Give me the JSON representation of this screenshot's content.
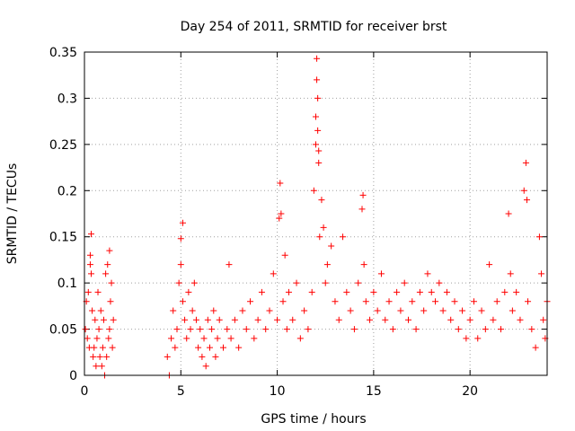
{
  "chart_data": {
    "type": "scatter",
    "title": "Day 254 of 2011, SRMTID for receiver brst",
    "xlabel": "GPS time / hours",
    "ylabel": "SRMTID / TECUs",
    "xlim": [
      0,
      24
    ],
    "ylim": [
      0,
      0.35
    ],
    "x_ticks": [
      "0",
      "5",
      "10",
      "15",
      "20"
    ],
    "y_ticks": [
      "0",
      "0.05",
      "0.1",
      "0.15",
      "0.2",
      "0.25",
      "0.3",
      "0.35"
    ],
    "x_tick_values": [
      0,
      5,
      10,
      15,
      20
    ],
    "y_tick_values": [
      0,
      0.05,
      0.1,
      0.15,
      0.2,
      0.25,
      0.3,
      0.35
    ],
    "grid": true,
    "marker": "+",
    "marker_color": "#ff0000",
    "series": [
      {
        "points": [
          [
            0.05,
            0.05
          ],
          [
            0.1,
            0.08
          ],
          [
            0.15,
            0.04
          ],
          [
            0.2,
            0.09
          ],
          [
            0.25,
            0.03
          ],
          [
            0.3,
            0.13
          ],
          [
            0.3,
            0.12
          ],
          [
            0.35,
            0.11
          ],
          [
            0.35,
            0.153
          ],
          [
            0.4,
            0.07
          ],
          [
            0.45,
            0.02
          ],
          [
            0.5,
            0.03
          ],
          [
            0.55,
            0.06
          ],
          [
            0.6,
            0.01
          ],
          [
            0.65,
            0.04
          ],
          [
            0.7,
            0.09
          ],
          [
            0.75,
            0.05
          ],
          [
            0.8,
            0.02
          ],
          [
            0.85,
            0.07
          ],
          [
            0.9,
            0.01
          ],
          [
            0.95,
            0.03
          ],
          [
            1.0,
            0.06
          ],
          [
            1.05,
            0.0
          ],
          [
            1.1,
            0.11
          ],
          [
            1.15,
            0.02
          ],
          [
            1.2,
            0.12
          ],
          [
            1.25,
            0.04
          ],
          [
            1.3,
            0.05
          ],
          [
            1.3,
            0.135
          ],
          [
            1.35,
            0.08
          ],
          [
            1.4,
            0.1
          ],
          [
            1.45,
            0.03
          ],
          [
            1.5,
            0.06
          ],
          [
            4.3,
            0.02
          ],
          [
            4.4,
            0.0
          ],
          [
            4.5,
            0.04
          ],
          [
            4.6,
            0.07
          ],
          [
            4.7,
            0.03
          ],
          [
            4.8,
            0.05
          ],
          [
            4.9,
            0.1
          ],
          [
            5.0,
            0.12
          ],
          [
            5.0,
            0.148
          ],
          [
            5.1,
            0.08
          ],
          [
            5.1,
            0.165
          ],
          [
            5.2,
            0.06
          ],
          [
            5.3,
            0.04
          ],
          [
            5.4,
            0.09
          ],
          [
            5.5,
            0.05
          ],
          [
            5.6,
            0.07
          ],
          [
            5.7,
            0.1
          ],
          [
            5.8,
            0.06
          ],
          [
            5.9,
            0.03
          ],
          [
            6.0,
            0.05
          ],
          [
            6.1,
            0.02
          ],
          [
            6.2,
            0.04
          ],
          [
            6.3,
            0.01
          ],
          [
            6.4,
            0.06
          ],
          [
            6.5,
            0.03
          ],
          [
            6.6,
            0.05
          ],
          [
            6.7,
            0.07
          ],
          [
            6.8,
            0.02
          ],
          [
            6.9,
            0.04
          ],
          [
            7.0,
            0.06
          ],
          [
            7.2,
            0.03
          ],
          [
            7.4,
            0.05
          ],
          [
            7.5,
            0.12
          ],
          [
            7.6,
            0.04
          ],
          [
            7.8,
            0.06
          ],
          [
            8.0,
            0.03
          ],
          [
            8.2,
            0.07
          ],
          [
            8.4,
            0.05
          ],
          [
            8.6,
            0.08
          ],
          [
            8.8,
            0.04
          ],
          [
            9.0,
            0.06
          ],
          [
            9.2,
            0.09
          ],
          [
            9.4,
            0.05
          ],
          [
            9.6,
            0.07
          ],
          [
            9.8,
            0.11
          ],
          [
            10.0,
            0.06
          ],
          [
            10.1,
            0.17
          ],
          [
            10.15,
            0.208
          ],
          [
            10.2,
            0.175
          ],
          [
            10.3,
            0.08
          ],
          [
            10.4,
            0.13
          ],
          [
            10.5,
            0.05
          ],
          [
            10.6,
            0.09
          ],
          [
            10.8,
            0.06
          ],
          [
            11.0,
            0.1
          ],
          [
            11.2,
            0.04
          ],
          [
            11.4,
            0.07
          ],
          [
            11.6,
            0.05
          ],
          [
            11.8,
            0.09
          ],
          [
            11.9,
            0.2
          ],
          [
            12.0,
            0.28
          ],
          [
            12.0,
            0.25
          ],
          [
            12.05,
            0.343
          ],
          [
            12.05,
            0.32
          ],
          [
            12.1,
            0.3
          ],
          [
            12.1,
            0.265
          ],
          [
            12.15,
            0.23
          ],
          [
            12.15,
            0.243
          ],
          [
            12.2,
            0.15
          ],
          [
            12.3,
            0.19
          ],
          [
            12.4,
            0.16
          ],
          [
            12.5,
            0.1
          ],
          [
            12.6,
            0.12
          ],
          [
            12.8,
            0.14
          ],
          [
            13.0,
            0.08
          ],
          [
            13.2,
            0.06
          ],
          [
            13.4,
            0.15
          ],
          [
            13.6,
            0.09
          ],
          [
            13.8,
            0.07
          ],
          [
            14.0,
            0.05
          ],
          [
            14.2,
            0.1
          ],
          [
            14.4,
            0.18
          ],
          [
            14.45,
            0.195
          ],
          [
            14.5,
            0.12
          ],
          [
            14.6,
            0.08
          ],
          [
            14.8,
            0.06
          ],
          [
            15.0,
            0.09
          ],
          [
            15.2,
            0.07
          ],
          [
            15.4,
            0.11
          ],
          [
            15.6,
            0.06
          ],
          [
            15.8,
            0.08
          ],
          [
            16.0,
            0.05
          ],
          [
            16.2,
            0.09
          ],
          [
            16.4,
            0.07
          ],
          [
            16.6,
            0.1
          ],
          [
            16.8,
            0.06
          ],
          [
            17.0,
            0.08
          ],
          [
            17.2,
            0.05
          ],
          [
            17.4,
            0.09
          ],
          [
            17.6,
            0.07
          ],
          [
            17.8,
            0.11
          ],
          [
            18.0,
            0.09
          ],
          [
            18.2,
            0.08
          ],
          [
            18.4,
            0.1
          ],
          [
            18.6,
            0.07
          ],
          [
            18.8,
            0.09
          ],
          [
            19.0,
            0.06
          ],
          [
            19.2,
            0.08
          ],
          [
            19.4,
            0.05
          ],
          [
            19.6,
            0.07
          ],
          [
            19.8,
            0.04
          ],
          [
            20.0,
            0.06
          ],
          [
            20.2,
            0.08
          ],
          [
            20.4,
            0.04
          ],
          [
            20.6,
            0.07
          ],
          [
            20.8,
            0.05
          ],
          [
            21.0,
            0.12
          ],
          [
            21.2,
            0.06
          ],
          [
            21.4,
            0.08
          ],
          [
            21.6,
            0.05
          ],
          [
            21.8,
            0.09
          ],
          [
            22.0,
            0.175
          ],
          [
            22.1,
            0.11
          ],
          [
            22.2,
            0.07
          ],
          [
            22.4,
            0.09
          ],
          [
            22.6,
            0.06
          ],
          [
            22.8,
            0.2
          ],
          [
            22.9,
            0.23
          ],
          [
            22.95,
            0.19
          ],
          [
            23.0,
            0.08
          ],
          [
            23.2,
            0.05
          ],
          [
            23.4,
            0.03
          ],
          [
            23.6,
            0.15
          ],
          [
            23.7,
            0.11
          ],
          [
            23.8,
            0.06
          ],
          [
            23.9,
            0.04
          ],
          [
            24.0,
            0.08
          ]
        ]
      }
    ]
  }
}
